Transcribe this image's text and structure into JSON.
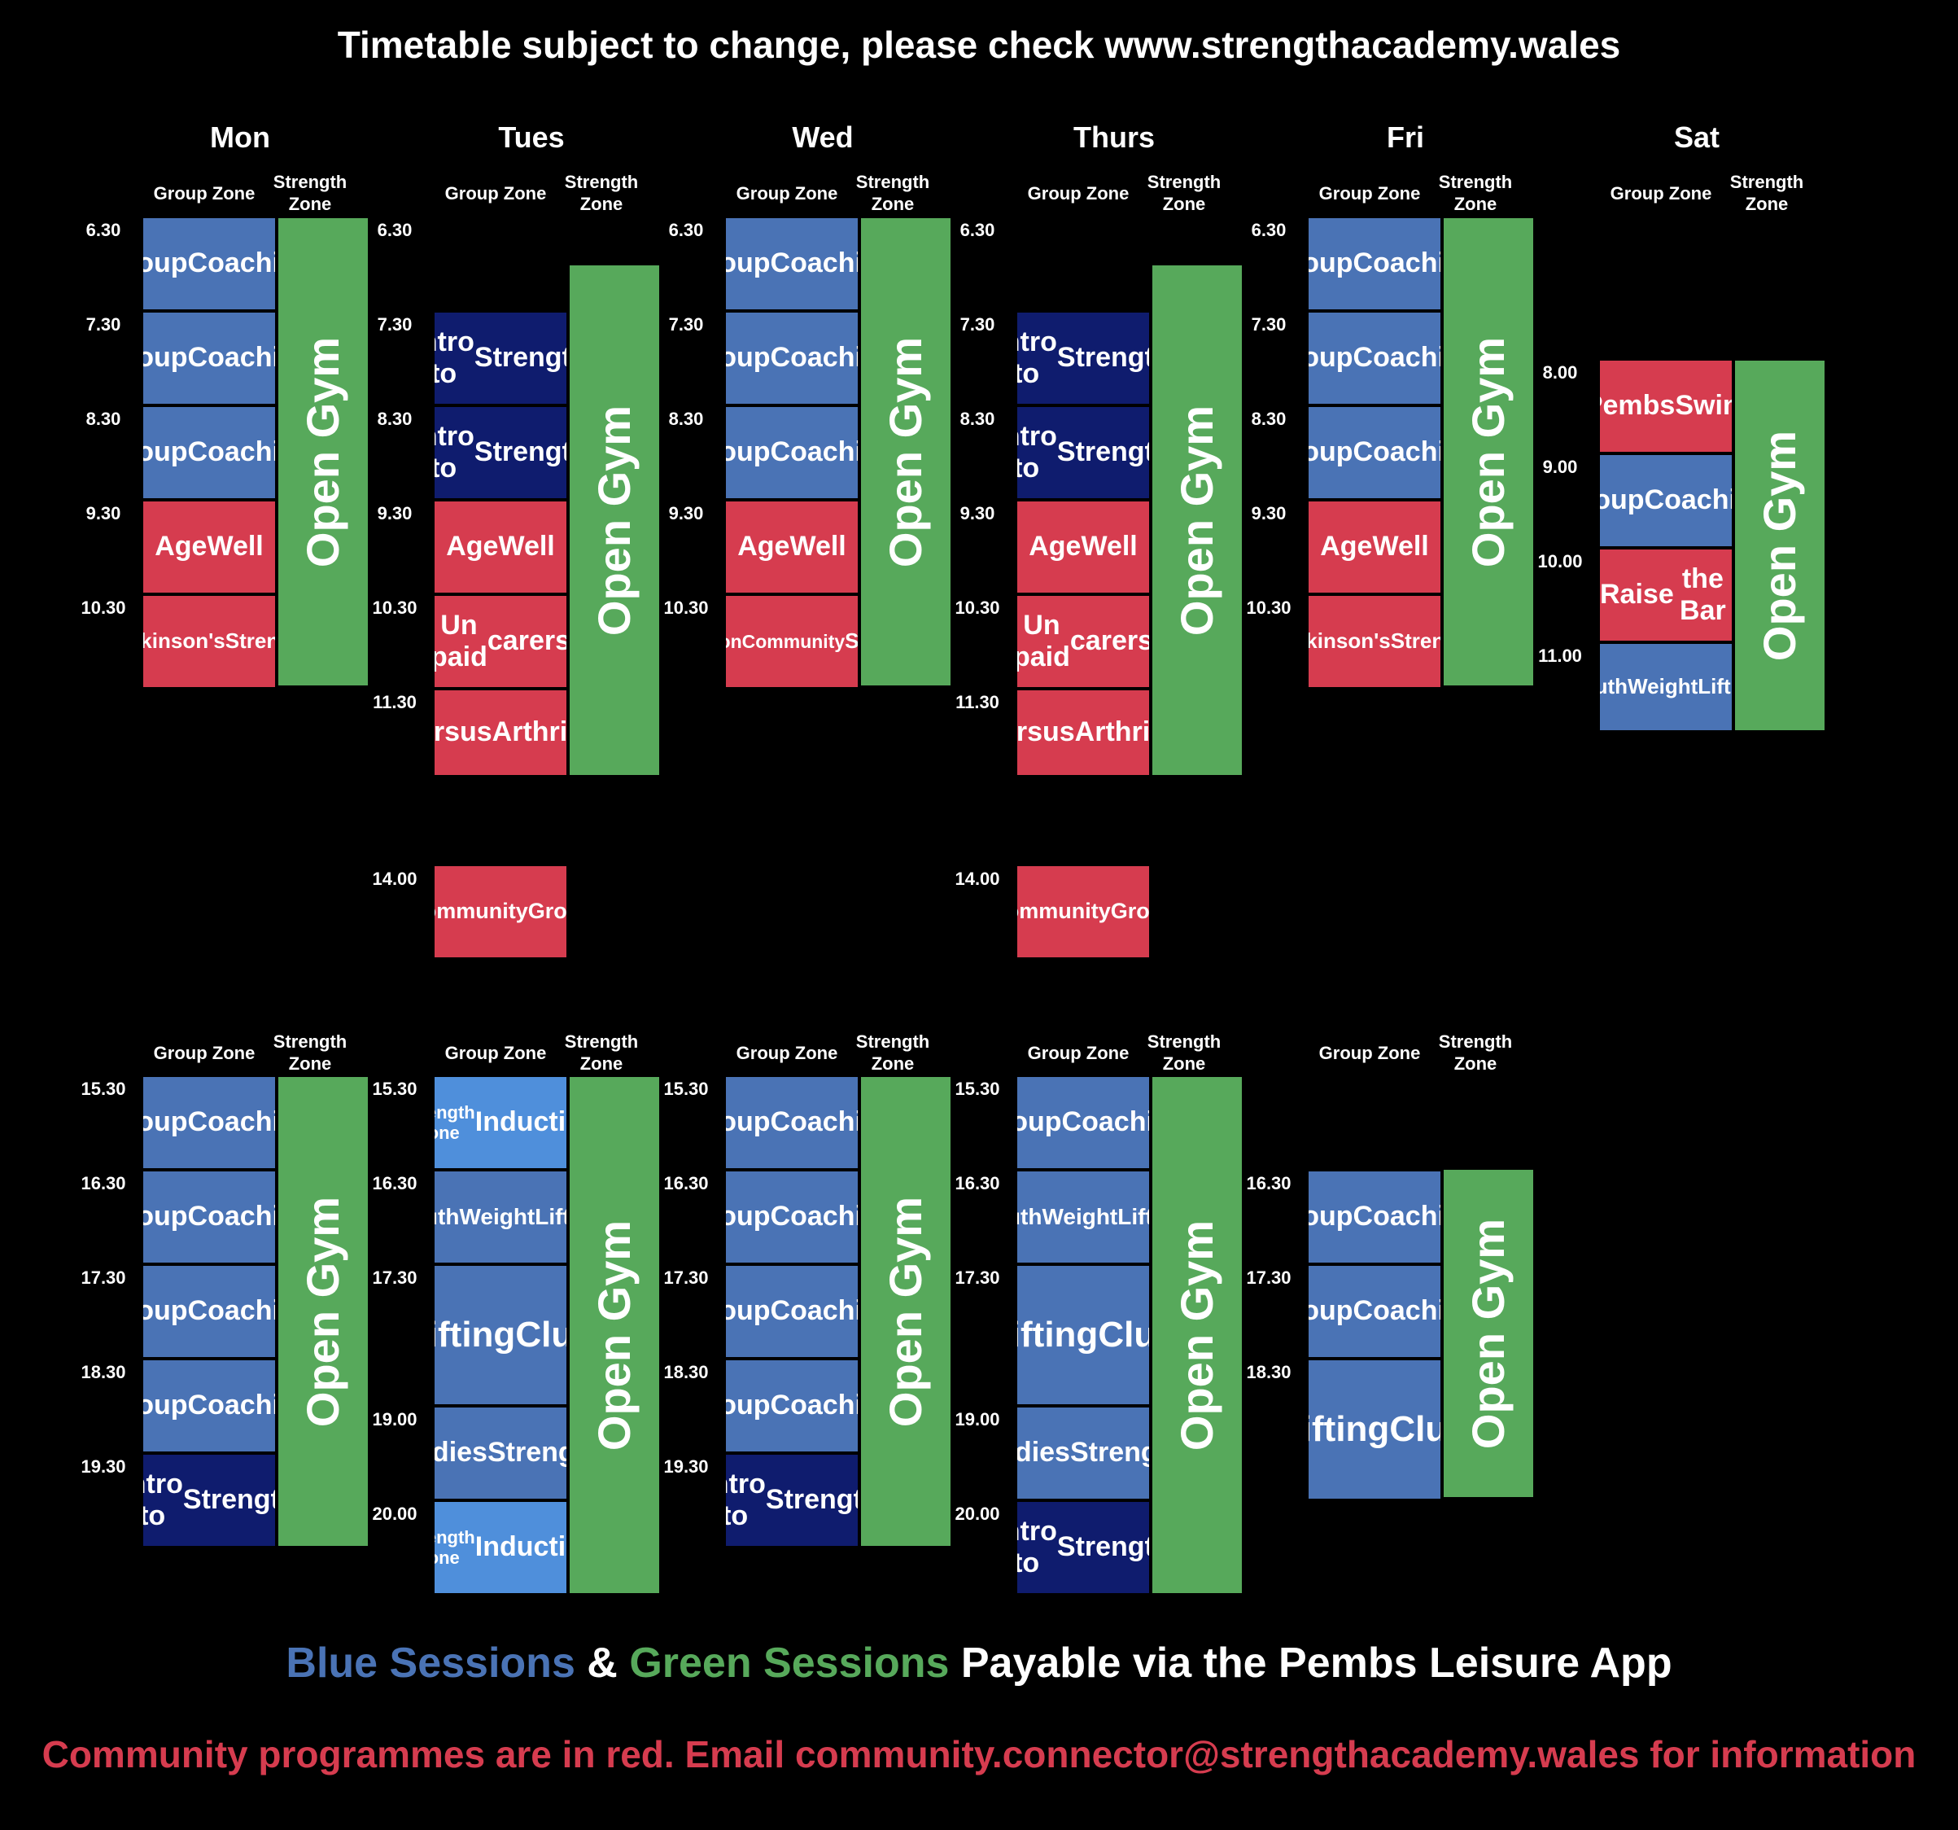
{
  "header": {
    "title": "Timetable subject to change, please check www.strengthacademy.wales"
  },
  "days": [
    "Mon",
    "Tues",
    "Wed",
    "Thurs",
    "Fri",
    "Sat"
  ],
  "zone_labels": {
    "group": "Group Zone",
    "strength_line1": "Strength",
    "strength_line2": "Zone"
  },
  "colors": {
    "blue": "#4a73b5",
    "dark_blue": "#0f1c6e",
    "light_blue": "#4f8fdb",
    "red": "#d63c4f",
    "green": "#57a95b"
  },
  "morning": {
    "Mon": {
      "times": [
        "6.30",
        "7.30",
        "8.30",
        "9.30",
        "10.30"
      ],
      "sessions": [
        {
          "lines": [
            "Group",
            "Coaching"
          ],
          "color": "blue"
        },
        {
          "lines": [
            "Group",
            "Coaching"
          ],
          "color": "blue"
        },
        {
          "lines": [
            "Group",
            "Coaching"
          ],
          "color": "blue"
        },
        {
          "lines": [
            "Age",
            "Well"
          ],
          "color": "red"
        },
        {
          "lines": [
            "Parkinson's",
            "Strength"
          ],
          "color": "red"
        }
      ],
      "strength": "Open Gym"
    },
    "Tues": {
      "times": [
        "6.30",
        "7.30",
        "8.30",
        "9.30",
        "10.30",
        "11.30"
      ],
      "sessions": [
        {
          "lines": [
            "Intro to",
            "Strength"
          ],
          "color": "dark_blue"
        },
        {
          "lines": [
            "Intro to",
            "Strength"
          ],
          "color": "dark_blue"
        },
        {
          "lines": [
            "Age",
            "Well"
          ],
          "color": "red"
        },
        {
          "lines": [
            "Un paid",
            "carers"
          ],
          "color": "red"
        },
        {
          "lines": [
            "Versus",
            "Arthritis"
          ],
          "color": "red"
        }
      ],
      "strength": "Open Gym"
    },
    "Wed": {
      "times": [
        "6.30",
        "7.30",
        "8.30",
        "9.30",
        "10.30"
      ],
      "sessions": [
        {
          "lines": [
            "Group",
            "Coaching"
          ],
          "color": "blue"
        },
        {
          "lines": [
            "Group",
            "Coaching"
          ],
          "color": "blue"
        },
        {
          "lines": [
            "Group",
            "Coaching"
          ],
          "color": "blue"
        },
        {
          "lines": [
            "Age",
            "Well"
          ],
          "color": "red"
        },
        {
          "lines": [
            "Induction",
            "Community",
            "Session"
          ],
          "color": "red"
        }
      ],
      "strength": "Open Gym"
    },
    "Thurs": {
      "times": [
        "6.30",
        "7.30",
        "8.30",
        "9.30",
        "10.30",
        "11.30"
      ],
      "sessions": [
        {
          "lines": [
            "Intro to",
            "Strength"
          ],
          "color": "dark_blue"
        },
        {
          "lines": [
            "Intro to",
            "Strength"
          ],
          "color": "dark_blue"
        },
        {
          "lines": [
            "Age",
            "Well"
          ],
          "color": "red"
        },
        {
          "lines": [
            "Un paid",
            "carers"
          ],
          "color": "red"
        },
        {
          "lines": [
            "Versus",
            "Arthritis"
          ],
          "color": "red"
        }
      ],
      "strength": "Open Gym"
    },
    "Fri": {
      "times": [
        "6.30",
        "7.30",
        "8.30",
        "9.30",
        "10.30"
      ],
      "sessions": [
        {
          "lines": [
            "Group",
            "Coaching"
          ],
          "color": "blue"
        },
        {
          "lines": [
            "Group",
            "Coaching"
          ],
          "color": "blue"
        },
        {
          "lines": [
            "Group",
            "Coaching"
          ],
          "color": "blue"
        },
        {
          "lines": [
            "Age",
            "Well"
          ],
          "color": "red"
        },
        {
          "lines": [
            "Parkinson's",
            "Strength"
          ],
          "color": "red"
        }
      ],
      "strength": "Open Gym"
    },
    "Sat": {
      "times": [
        "8.00",
        "9.00",
        "10.00",
        "11.00"
      ],
      "sessions": [
        {
          "lines": [
            "Pembs",
            "Swim"
          ],
          "color": "red"
        },
        {
          "lines": [
            "Group",
            "Coaching"
          ],
          "color": "blue"
        },
        {
          "lines": [
            "Raise",
            "the Bar"
          ],
          "color": "red"
        },
        {
          "lines": [
            "Youth",
            "Weight",
            "Lifting"
          ],
          "color": "blue"
        }
      ],
      "strength": "Open Gym"
    }
  },
  "midday": {
    "Tues": {
      "time": "14.00",
      "lines": [
        "Community",
        "Group"
      ],
      "color": "red"
    },
    "Thurs": {
      "time": "14.00",
      "lines": [
        "Community",
        "Group"
      ],
      "color": "red"
    }
  },
  "evening": {
    "Mon": {
      "times": [
        "15.30",
        "16.30",
        "17.30",
        "18.30",
        "19.30"
      ],
      "sessions": [
        {
          "lines": [
            "Group",
            "Coaching"
          ],
          "color": "blue"
        },
        {
          "lines": [
            "Group",
            "Coaching"
          ],
          "color": "blue"
        },
        {
          "lines": [
            "Group",
            "Coaching"
          ],
          "color": "blue"
        },
        {
          "lines": [
            "Group",
            "Coaching"
          ],
          "color": "blue"
        },
        {
          "lines": [
            "Intro to",
            "Strength"
          ],
          "color": "dark_blue"
        }
      ],
      "strength": "Open Gym"
    },
    "Tues": {
      "times": [
        "15.30",
        "16.30",
        "17.30",
        "19.00",
        "20.00"
      ],
      "sessions": [
        {
          "lines": [
            "Strength Zone",
            "Induction"
          ],
          "color": "light_blue"
        },
        {
          "lines": [
            "Youth",
            "Weight",
            "Lifting"
          ],
          "color": "blue"
        },
        {
          "lines": [
            "Lifting",
            "Club"
          ],
          "color": "blue"
        },
        {
          "lines": [
            "Ladies",
            "Strength"
          ],
          "color": "blue"
        },
        {
          "lines": [
            "Strength Zone",
            "Induction"
          ],
          "color": "light_blue"
        }
      ],
      "strength": "Open Gym"
    },
    "Wed": {
      "times": [
        "15.30",
        "16.30",
        "17.30",
        "18.30",
        "19.30"
      ],
      "sessions": [
        {
          "lines": [
            "Group",
            "Coaching"
          ],
          "color": "blue"
        },
        {
          "lines": [
            "Group",
            "Coaching"
          ],
          "color": "blue"
        },
        {
          "lines": [
            "Group",
            "Coaching"
          ],
          "color": "blue"
        },
        {
          "lines": [
            "Group",
            "Coaching"
          ],
          "color": "blue"
        },
        {
          "lines": [
            "Intro to",
            "Strength"
          ],
          "color": "dark_blue"
        }
      ],
      "strength": "Open Gym"
    },
    "Thurs": {
      "times": [
        "15.30",
        "16.30",
        "17.30",
        "19.00",
        "20.00"
      ],
      "sessions": [
        {
          "lines": [
            "Group",
            "Coaching"
          ],
          "color": "blue"
        },
        {
          "lines": [
            "Youth",
            "Weight",
            "Lifting"
          ],
          "color": "blue"
        },
        {
          "lines": [
            "Lifting",
            "Club"
          ],
          "color": "blue"
        },
        {
          "lines": [
            "Ladies",
            "Strength"
          ],
          "color": "blue"
        },
        {
          "lines": [
            "Intro to",
            "Strength"
          ],
          "color": "dark_blue"
        }
      ],
      "strength": "Open Gym"
    },
    "Fri": {
      "times": [
        "16.30",
        "17.30",
        "18.30"
      ],
      "sessions": [
        {
          "lines": [
            "Group",
            "Coaching"
          ],
          "color": "blue"
        },
        {
          "lines": [
            "Group",
            "Coaching"
          ],
          "color": "blue"
        },
        {
          "lines": [
            "Lifting",
            "Club"
          ],
          "color": "blue"
        }
      ],
      "strength": "Open Gym"
    }
  },
  "footer": {
    "blue_text": "Blue Sessions",
    "amp": " & ",
    "green_text": "Green Sessions",
    "rest": " Payable via the Pembs Leisure App",
    "community": "Community programmes are in red. Email community.connector@strengthacademy.wales for information"
  }
}
